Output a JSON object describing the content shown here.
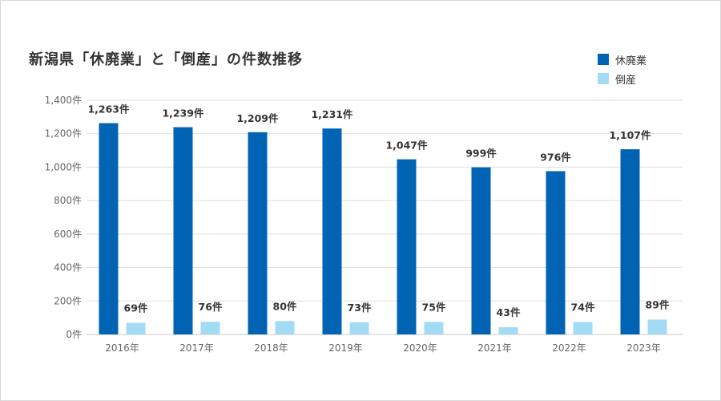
{
  "title": "新潟県「休廃業」と「倒産」の件数推移",
  "colors": {
    "closure": "#0063b4",
    "bankruptcy": "#a3dbf4",
    "grid": "#dddddd",
    "axis": "#c9c9c9"
  },
  "chart_data": {
    "type": "bar",
    "title": "新潟県「休廃業」と「倒産」の件数推移",
    "categories": [
      "2016年",
      "2017年",
      "2018年",
      "2019年",
      "2020年",
      "2021年",
      "2022年",
      "2023年"
    ],
    "series": [
      {
        "name": "休廃業",
        "values": [
          1263,
          1239,
          1209,
          1231,
          1047,
          999,
          976,
          1107
        ],
        "labels": [
          "1,263件",
          "1,239件",
          "1,209件",
          "1,231件",
          "1,047件",
          "999件",
          "976件",
          "1,107件"
        ]
      },
      {
        "name": "倒産",
        "values": [
          69,
          76,
          80,
          73,
          75,
          43,
          74,
          89
        ],
        "labels": [
          "69件",
          "76件",
          "80件",
          "73件",
          "75件",
          "43件",
          "74件",
          "89件"
        ]
      }
    ],
    "ylim": [
      0,
      1400
    ],
    "yticks": [
      0,
      200,
      400,
      600,
      800,
      1000,
      1200,
      1400
    ],
    "ytick_labels": [
      "0件",
      "200件",
      "400件",
      "600件",
      "800件",
      "1,000件",
      "1,200件",
      "1,400件"
    ],
    "legend_position": "top-right",
    "grid": true
  }
}
